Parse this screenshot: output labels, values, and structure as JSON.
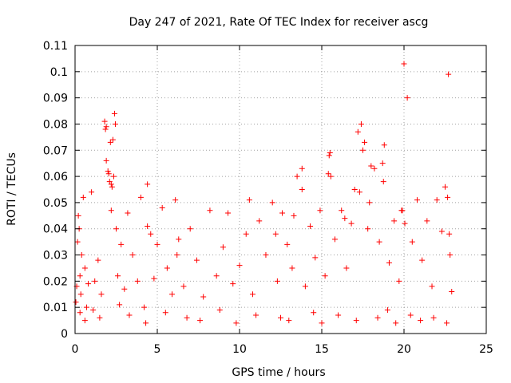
{
  "chart_data": {
    "type": "scatter",
    "title": "Day 247 of 2021, Rate Of TEC Index for receiver ascg",
    "xlabel": "GPS time / hours",
    "ylabel": "ROTI / TECUs",
    "xlim": [
      0,
      25
    ],
    "ylim": [
      0,
      0.11
    ],
    "x_ticks": [
      0,
      5,
      10,
      15,
      20,
      25
    ],
    "x_tick_labels": [
      "0",
      "5",
      "10",
      "15",
      "20",
      "25"
    ],
    "y_ticks": [
      0,
      0.01,
      0.02,
      0.03,
      0.04,
      0.05,
      0.06,
      0.07,
      0.08,
      0.09,
      0.1,
      0.11
    ],
    "y_tick_labels": [
      "0",
      "0.01",
      "0.02",
      "0.03",
      "0.04",
      "0.05",
      "0.06",
      "0.07",
      "0.08",
      "0.09",
      "0.1",
      "0.11"
    ],
    "grid": true,
    "marker": "plus",
    "series": [
      {
        "name": "ROTI",
        "color": "#ff0000",
        "x": [
          0.05,
          0.1,
          0.15,
          0.2,
          0.25,
          0.3,
          0.35,
          0.4,
          0.5,
          0.6,
          0.7,
          0.8,
          1.0,
          1.2,
          1.4,
          1.6,
          1.8,
          1.85,
          1.9,
          2.0,
          2.1,
          2.15,
          2.2,
          2.25,
          2.3,
          2.4,
          2.5,
          2.6,
          2.8,
          3.0,
          3.2,
          3.5,
          3.8,
          4.0,
          4.2,
          4.4,
          4.6,
          4.8,
          5.0,
          5.3,
          5.6,
          5.9,
          6.1,
          6.3,
          6.6,
          7.0,
          7.4,
          7.8,
          8.2,
          8.6,
          9.0,
          9.3,
          9.6,
          10.0,
          10.4,
          10.6,
          10.8,
          11.2,
          11.6,
          12.0,
          12.3,
          12.6,
          12.9,
          13.2,
          13.5,
          13.8,
          14.0,
          14.3,
          14.6,
          14.9,
          15.2,
          15.4,
          15.5,
          15.8,
          16.2,
          16.5,
          16.8,
          17.0,
          17.2,
          17.4,
          17.6,
          17.8,
          18.0,
          18.2,
          18.5,
          18.8,
          19.1,
          19.4,
          19.7,
          19.9,
          20.0,
          20.2,
          20.5,
          20.8,
          21.1,
          21.4,
          21.7,
          22.0,
          22.3,
          22.5,
          22.7,
          22.8,
          22.9,
          0.3,
          0.6,
          1.1,
          1.5,
          2.7,
          3.3,
          4.3,
          5.5,
          6.8,
          7.6,
          8.8,
          9.8,
          11.0,
          12.5,
          13.0,
          14.5,
          15.0,
          16.0,
          17.1,
          18.4,
          19.0,
          19.5,
          20.4,
          21.0,
          21.8,
          22.6,
          1.9,
          2.35,
          2.45,
          17.3,
          17.5,
          17.9,
          15.45,
          15.55,
          13.8,
          13.3,
          18.7,
          18.75,
          19.85,
          20.05,
          22.75,
          22.65,
          6.2,
          4.4,
          12.2,
          16.4,
          2.05,
          2.2
        ],
        "y": [
          0.012,
          0.018,
          0.035,
          0.045,
          0.04,
          0.022,
          0.015,
          0.03,
          0.052,
          0.025,
          0.01,
          0.019,
          0.054,
          0.02,
          0.028,
          0.015,
          0.081,
          0.078,
          0.066,
          0.062,
          0.058,
          0.073,
          0.047,
          0.056,
          0.074,
          0.084,
          0.04,
          0.022,
          0.034,
          0.017,
          0.046,
          0.03,
          0.02,
          0.052,
          0.01,
          0.057,
          0.038,
          0.021,
          0.034,
          0.048,
          0.025,
          0.015,
          0.051,
          0.036,
          0.018,
          0.04,
          0.028,
          0.014,
          0.047,
          0.022,
          0.033,
          0.046,
          0.019,
          0.026,
          0.038,
          0.051,
          0.015,
          0.043,
          0.03,
          0.05,
          0.02,
          0.046,
          0.034,
          0.025,
          0.06,
          0.063,
          0.018,
          0.041,
          0.029,
          0.047,
          0.022,
          0.061,
          0.069,
          0.036,
          0.047,
          0.025,
          0.042,
          0.055,
          0.077,
          0.08,
          0.073,
          0.04,
          0.064,
          0.063,
          0.035,
          0.072,
          0.027,
          0.043,
          0.02,
          0.047,
          0.103,
          0.09,
          0.035,
          0.051,
          0.028,
          0.043,
          0.018,
          0.051,
          0.039,
          0.056,
          0.099,
          0.03,
          0.016,
          0.008,
          0.005,
          0.009,
          0.006,
          0.011,
          0.007,
          0.004,
          0.008,
          0.006,
          0.005,
          0.009,
          0.004,
          0.007,
          0.006,
          0.005,
          0.008,
          0.004,
          0.007,
          0.005,
          0.006,
          0.009,
          0.004,
          0.007,
          0.005,
          0.006,
          0.004,
          0.079,
          0.06,
          0.08,
          0.054,
          0.07,
          0.05,
          0.068,
          0.06,
          0.055,
          0.045,
          0.065,
          0.058,
          0.047,
          0.042,
          0.038,
          0.052,
          0.03,
          0.041,
          0.038,
          0.044,
          0.061,
          0.057
        ]
      }
    ]
  }
}
